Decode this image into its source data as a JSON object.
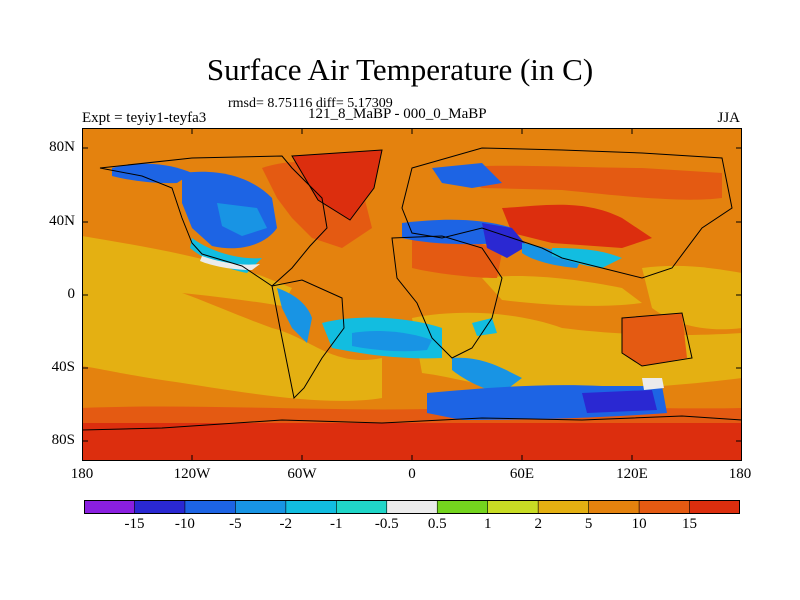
{
  "title": "Surface Air Temperature (in C)",
  "stats_line": "rmsd= 8.75116 diff= 5.17309",
  "experiment_label": "Expt = teyiy1-teyfa3",
  "comparison_label": "121_8_MaBP - 000_0_MaBP",
  "season_label": "JJA",
  "lat_ticks": [
    "80N",
    "40N",
    "0",
    "40S",
    "80S"
  ],
  "lon_ticks": [
    "180",
    "120W",
    "60W",
    "0",
    "60E",
    "120E",
    "180"
  ],
  "colorbar": {
    "labels": [
      "-15",
      "-10",
      "-5",
      "-2",
      "-1",
      "-0.5",
      "0.5",
      "1",
      "2",
      "5",
      "10",
      "15"
    ],
    "colors": [
      "#8a1fe0",
      "#2a28d2",
      "#1d64e4",
      "#1894e4",
      "#12bde0",
      "#20d6c8",
      "#ebebeb",
      "#74d41e",
      "#c8dc24",
      "#e4b012",
      "#e4820e",
      "#e45a12",
      "#dc2e0e"
    ]
  },
  "map_colors": {
    "ocean_warm": "#e4820e",
    "land_hot": "#e45a12",
    "polar_hot": "#dc2e0e",
    "moderate": "#e4b012",
    "cool": "#1d64e4",
    "cooler": "#2a28d2",
    "mild_cool": "#1894e4",
    "slight_cool": "#12bde0",
    "neutral": "#ebebeb",
    "mild_warm": "#74d41e"
  }
}
